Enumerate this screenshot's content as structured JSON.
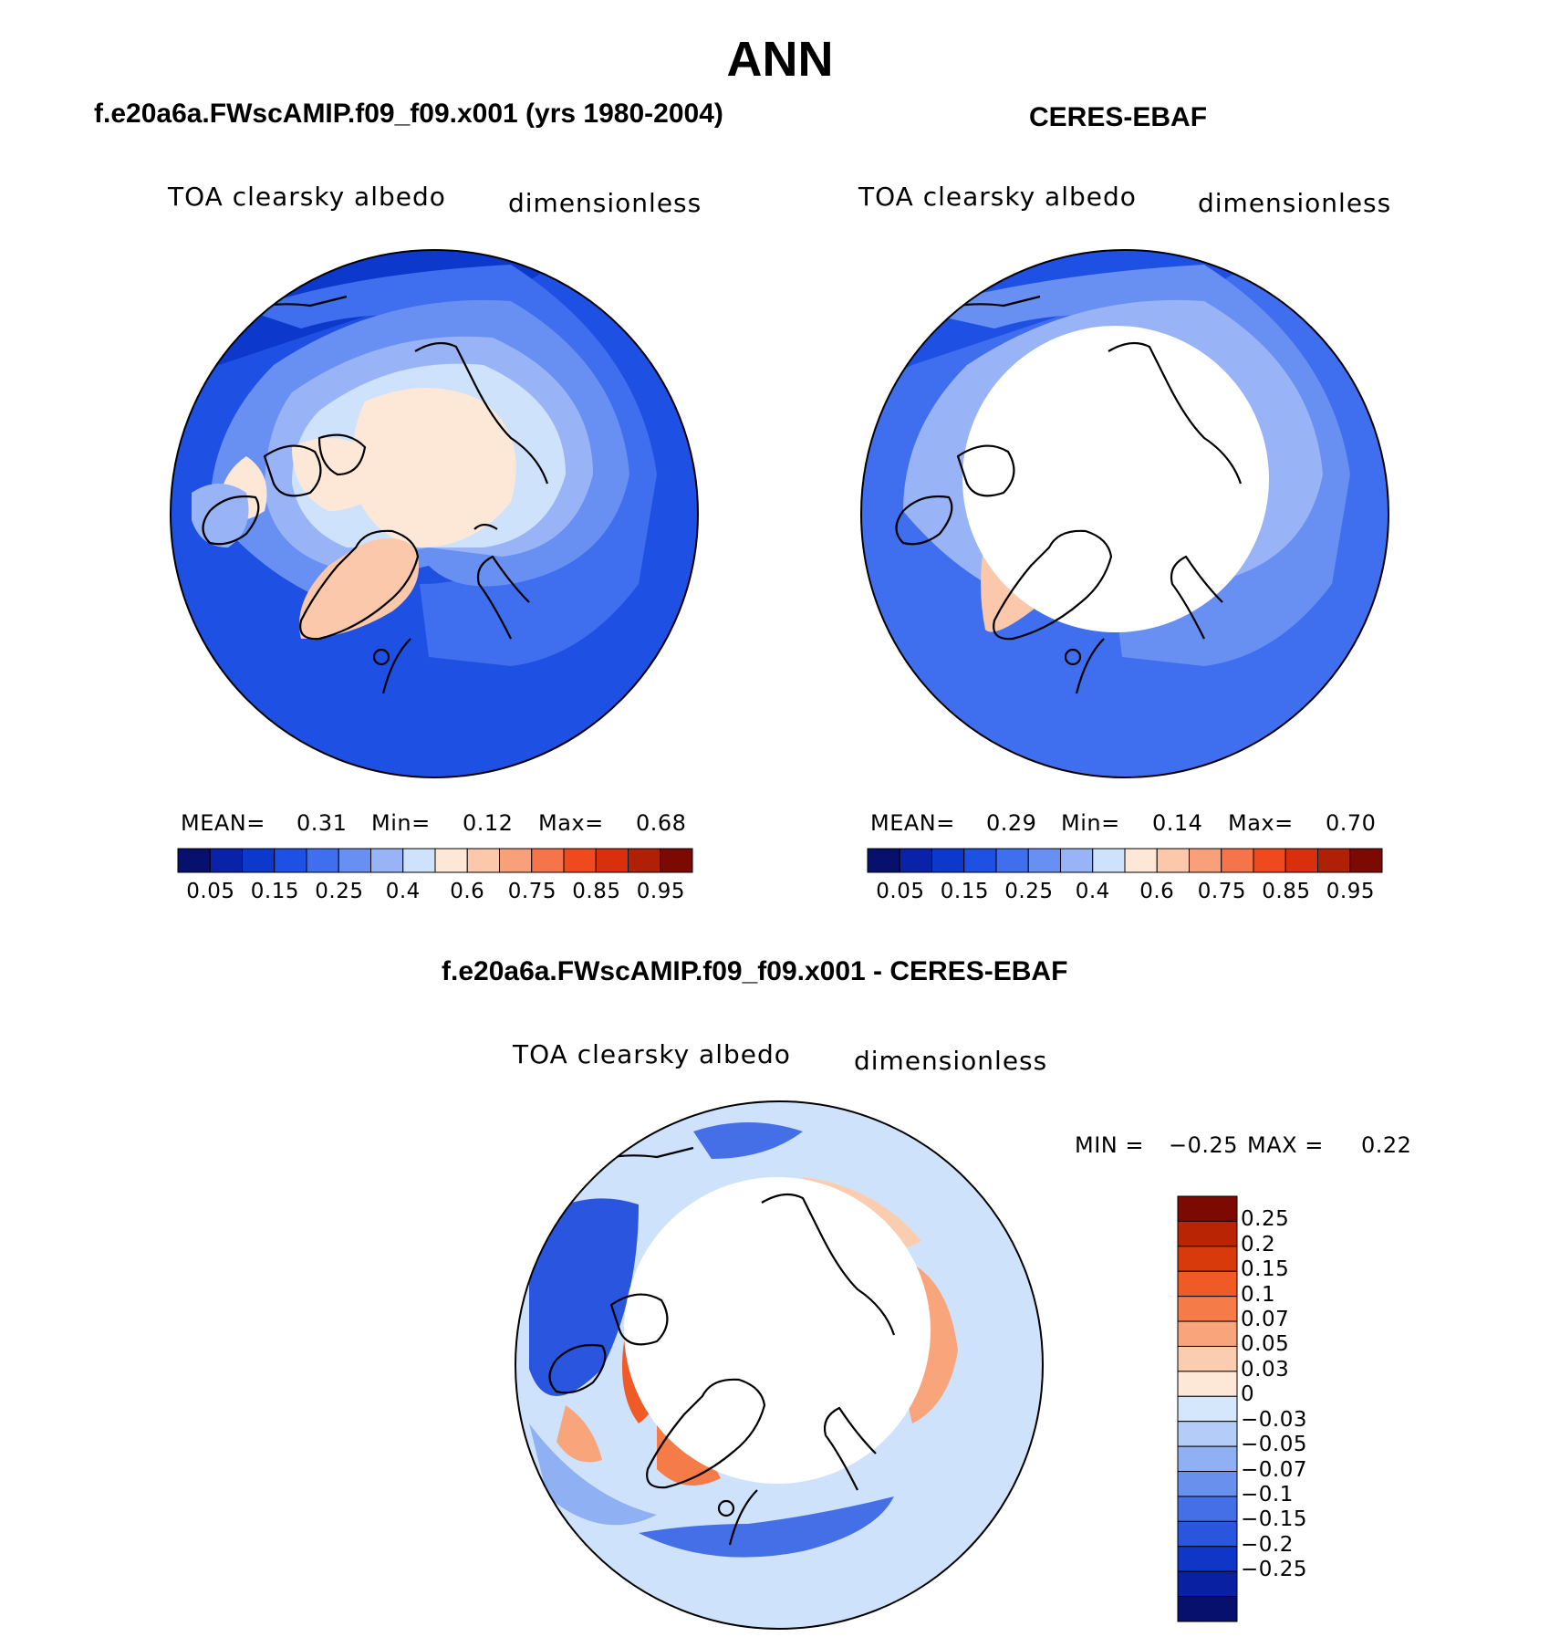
{
  "title": "ANN",
  "panels": [
    {
      "title": "f.e20a6a.FWscAMIP.f09_f09.x001 (yrs 1980-2004)",
      "variable_label": "TOA clearsky albedo",
      "units_label": "dimensionless",
      "stats": {
        "mean_label": "MEAN=",
        "mean": "0.31",
        "min_label": "Min=",
        "min": "0.12",
        "max_label": "Max=",
        "max": "0.68"
      }
    },
    {
      "title": "CERES-EBAF",
      "variable_label": "TOA clearsky albedo",
      "units_label": "dimensionless",
      "stats": {
        "mean_label": "MEAN=",
        "mean": "0.29",
        "min_label": "Min=",
        "min": "0.14",
        "max_label": "Max=",
        "max": "0.70"
      }
    },
    {
      "title": "f.e20a6a.FWscAMIP.f09_f09.x001 - CERES-EBAF",
      "variable_label": "TOA clearsky albedo",
      "units_label": "dimensionless",
      "stats": {
        "min_label": "MIN =",
        "min": "−0.25",
        "max_label": "MAX =",
        "max": "0.22"
      }
    }
  ],
  "colorbar_abs": {
    "colors": [
      "#08106e",
      "#0a22a8",
      "#0d38cc",
      "#1f50e4",
      "#3f6eee",
      "#6890f2",
      "#98b4f6",
      "#cfe2fb",
      "#fde8d8",
      "#fbc8ac",
      "#f8a07a",
      "#f5744a",
      "#ee4a1e",
      "#d8300c",
      "#b02006",
      "#7c0a02"
    ],
    "tick_labels": [
      "0.05",
      "0.15",
      "0.25",
      "0.4",
      "0.6",
      "0.75",
      "0.85",
      "0.95"
    ]
  },
  "colorbar_diff": {
    "colors": [
      "#7c0a02",
      "#b82404",
      "#d83a0c",
      "#f05a26",
      "#f57c48",
      "#f8a57c",
      "#fbcdb0",
      "#fde8d8",
      "#d5e7fb",
      "#b4cdf8",
      "#8fb0f3",
      "#6a90ed",
      "#456fe6",
      "#2a56df",
      "#1036c8",
      "#0a20a2",
      "#08106e"
    ],
    "tick_labels": [
      "0.25",
      "0.2",
      "0.15",
      "0.1",
      "0.07",
      "0.05",
      "0.03",
      "0",
      "−0.03",
      "−0.05",
      "−0.07",
      "−0.1",
      "−0.15",
      "−0.2",
      "−0.25"
    ]
  }
}
